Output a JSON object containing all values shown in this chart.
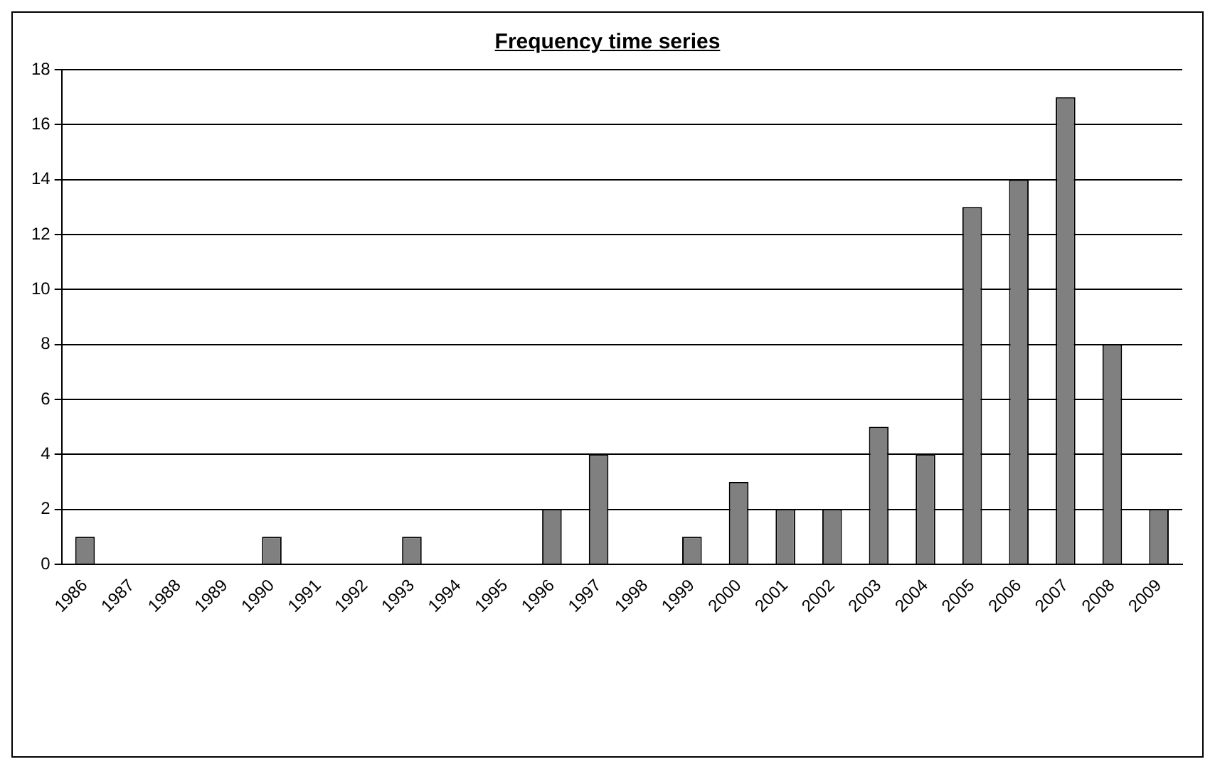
{
  "chart_data": {
    "type": "bar",
    "title": "Frequency time series",
    "categories": [
      "1986",
      "1987",
      "1988",
      "1989",
      "1990",
      "1991",
      "1992",
      "1993",
      "1994",
      "1995",
      "1996",
      "1997",
      "1998",
      "1999",
      "2000",
      "2001",
      "2002",
      "2003",
      "2004",
      "2005",
      "2006",
      "2007",
      "2008",
      "2009"
    ],
    "values": [
      1,
      0,
      0,
      0,
      1,
      0,
      0,
      1,
      0,
      0,
      2,
      4,
      0,
      1,
      3,
      2,
      2,
      5,
      4,
      13,
      14,
      17,
      8,
      2
    ],
    "color": "#808080",
    "ylim": [
      0,
      18
    ],
    "yticks": [
      0,
      2,
      4,
      6,
      8,
      10,
      12,
      14,
      16,
      18
    ],
    "grid": "y"
  }
}
